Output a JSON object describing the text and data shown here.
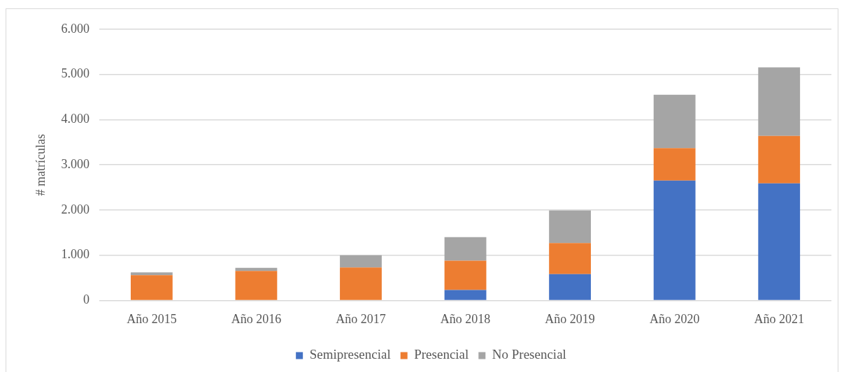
{
  "chart_data": {
    "type": "bar",
    "ylabel": "# matrículas",
    "categories": [
      "Año 2015",
      "Año 2016",
      "Año 2017",
      "Año 2018",
      "Año 2019",
      "Año 2020",
      "Año 2021"
    ],
    "series": [
      {
        "name": "Semipresencial",
        "color": "#4472c4",
        "values": [
          0,
          0,
          0,
          230,
          580,
          2650,
          2590
        ]
      },
      {
        "name": "Presencial",
        "color": "#ed7d31",
        "values": [
          560,
          650,
          730,
          650,
          690,
          720,
          1050
        ]
      },
      {
        "name": "No Presencial",
        "color": "#a5a5a5",
        "values": [
          60,
          70,
          270,
          520,
          720,
          1180,
          1520
        ]
      }
    ],
    "stacked": true,
    "ylim": [
      0,
      6000
    ],
    "yticks": [
      0,
      {
        "value": 1000,
        "label": "1.000"
      },
      {
        "value": 2000,
        "label": "2.000"
      },
      {
        "value": 3000,
        "label": "3.000"
      },
      {
        "value": 4000,
        "label": "4.000"
      },
      {
        "value": 5000,
        "label": "5.000"
      },
      {
        "value": 6000,
        "label": "6.000"
      }
    ],
    "grid": "y",
    "legend": "bottom"
  }
}
